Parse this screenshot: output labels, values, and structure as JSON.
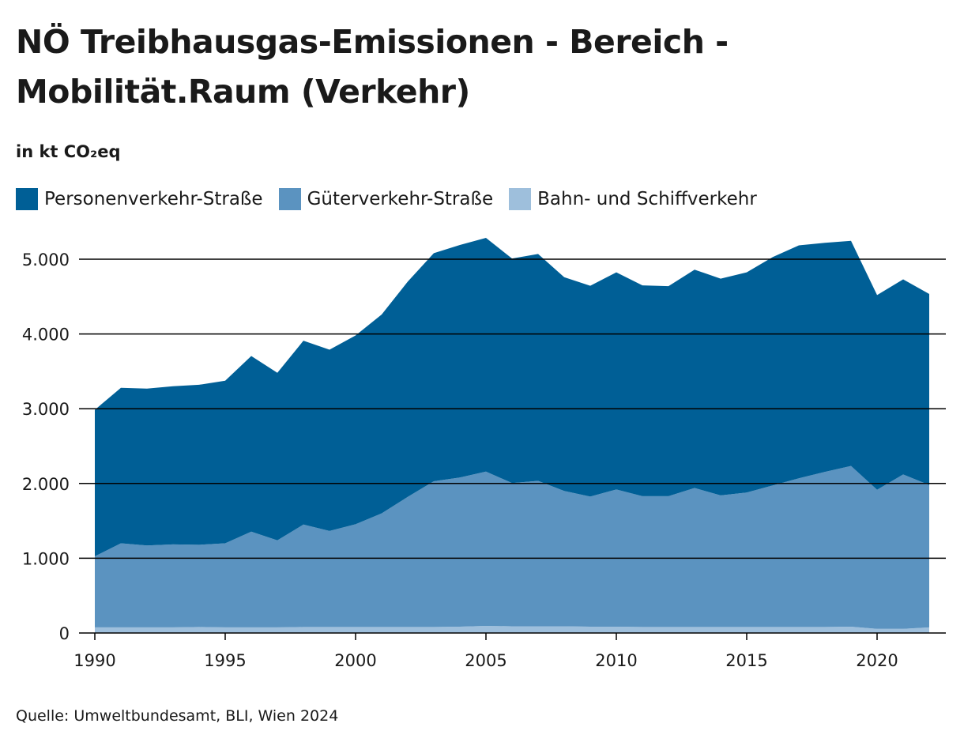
{
  "title": "NÖ Treibhausgas-Emissionen - Bereich - Mobilität.Raum (Verkehr)",
  "subtitle": "in kt CO₂eq",
  "source": "Quelle: Umweltbundesamt, BLI, Wien 2024",
  "colors": {
    "personenverkehr": "#005f96",
    "gueterverkehr": "#5b93c0",
    "bahn_schiff": "#9ebfdc",
    "grid": "#000000"
  },
  "chart_data": {
    "type": "area",
    "stacked": true,
    "title": "NÖ Treibhausgas-Emissionen - Bereich - Mobilität.Raum (Verkehr)",
    "ylabel": "in kt CO₂eq",
    "xlabel": "",
    "x": [
      1990,
      1991,
      1992,
      1993,
      1994,
      1995,
      1996,
      1997,
      1998,
      1999,
      2000,
      2001,
      2002,
      2003,
      2004,
      2005,
      2006,
      2007,
      2008,
      2009,
      2010,
      2011,
      2012,
      2013,
      2014,
      2015,
      2016,
      2017,
      2018,
      2019,
      2020,
      2021,
      2022
    ],
    "xlim": [
      1990,
      2022
    ],
    "ylim": [
      0,
      5000
    ],
    "x_ticks": [
      "1990",
      "1995",
      "2000",
      "2005",
      "2010",
      "2015",
      "2020"
    ],
    "y_ticks": [
      "0",
      "1.000",
      "2.000",
      "3.000",
      "4.000",
      "5.000"
    ],
    "grid": "horizontal",
    "legend_position": "top-left",
    "series": [
      {
        "name": "Bahn- und Schiffverkehr",
        "color_key": "bahn_schiff",
        "values": [
          75,
          75,
          75,
          75,
          80,
          75,
          75,
          75,
          80,
          80,
          80,
          80,
          80,
          80,
          85,
          95,
          90,
          90,
          90,
          85,
          85,
          80,
          80,
          80,
          80,
          80,
          80,
          80,
          80,
          85,
          55,
          55,
          75
        ]
      },
      {
        "name": "Güterverkehr-Straße",
        "color_key": "gueterverkehr",
        "values": [
          950,
          1125,
          1095,
          1110,
          1100,
          1125,
          1280,
          1165,
          1370,
          1285,
          1375,
          1520,
          1740,
          1950,
          1995,
          2065,
          1915,
          1945,
          1810,
          1740,
          1835,
          1750,
          1750,
          1860,
          1760,
          1800,
          1895,
          1990,
          2075,
          2150,
          1860,
          2065,
          1905
        ]
      },
      {
        "name": "Personenverkehr-Straße",
        "color_key": "personenverkehr",
        "values": [
          1960,
          2080,
          2100,
          2115,
          2140,
          2175,
          2350,
          2240,
          2460,
          2425,
          2525,
          2660,
          2880,
          3050,
          3110,
          3125,
          3005,
          3035,
          2860,
          2820,
          2905,
          2820,
          2810,
          2920,
          2900,
          2945,
          3055,
          3115,
          3065,
          3010,
          2605,
          2610,
          2555
        ]
      }
    ]
  },
  "legend": [
    {
      "label": "Personenverkehr-Straße",
      "color_key": "personenverkehr"
    },
    {
      "label": "Güterverkehr-Straße",
      "color_key": "gueterverkehr"
    },
    {
      "label": "Bahn- und Schiffverkehr",
      "color_key": "bahn_schiff"
    }
  ]
}
